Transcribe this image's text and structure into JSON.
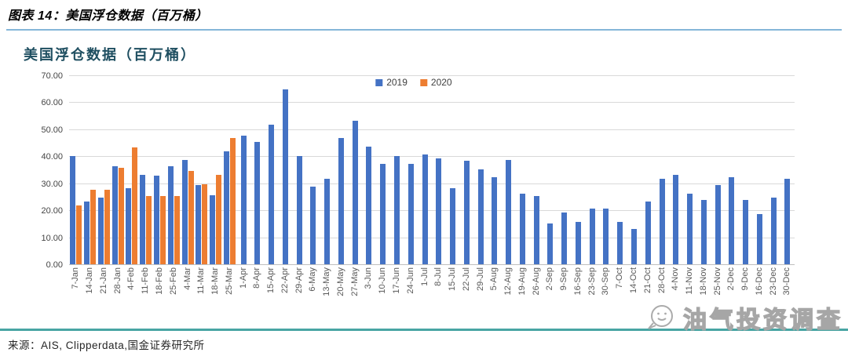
{
  "page": {
    "doc_title": "图表 14：美国浮仓数据（百万桶）",
    "source": "来源：AIS, Clipperdata,国金证券研究所",
    "watermark": "油气投资调查",
    "watermark_icon": "chat-bubble-smiley-icon"
  },
  "colors": {
    "series_2019": "#4472c4",
    "series_2020": "#ed7d31",
    "title_rule": "#85b6d8",
    "bottom_rule": "#48a5a3",
    "chart_title": "#1e4e60",
    "gridline": "#d9d9d9"
  },
  "chart_data": {
    "type": "bar",
    "title": "美国浮仓数据（百万桶）",
    "xlabel": "",
    "ylabel": "",
    "ylim": [
      0,
      70
    ],
    "ytick_step": 10,
    "ytick_labels": [
      "0.00",
      "10.00",
      "20.00",
      "30.00",
      "40.00",
      "50.00",
      "60.00",
      "70.00"
    ],
    "grid": true,
    "legend_position": "top-center",
    "categories": [
      "7-Jan",
      "14-Jan",
      "21-Jan",
      "28-Jan",
      "4-Feb",
      "11-Feb",
      "18-Feb",
      "25-Feb",
      "4-Mar",
      "11-Mar",
      "18-Mar",
      "25-Mar",
      "1-Apr",
      "8-Apr",
      "15-Apr",
      "22-Apr",
      "29-Apr",
      "6-May",
      "13-May",
      "20-May",
      "27-May",
      "3-Jun",
      "10-Jun",
      "17-Jun",
      "24-Jun",
      "1-Jul",
      "8-Jul",
      "15-Jul",
      "22-Jul",
      "29-Jul",
      "5-Aug",
      "12-Aug",
      "19-Aug",
      "26-Aug",
      "2-Sep",
      "9-Sep",
      "16-Sep",
      "23-Sep",
      "30-Sep",
      "7-Oct",
      "14-Oct",
      "21-Oct",
      "28-Oct",
      "4-Nov",
      "11-Nov",
      "18-Nov",
      "25-Nov",
      "2-Dec",
      "9-Dec",
      "16-Dec",
      "23-Dec",
      "30-Dec"
    ],
    "series": [
      {
        "name": "2019",
        "color": "#4472c4",
        "values": [
          40.5,
          23.5,
          25,
          36.5,
          28.5,
          33.5,
          33,
          36.5,
          39,
          29.5,
          26,
          42,
          48,
          45.5,
          52,
          65,
          40.5,
          29,
          32,
          47,
          53.5,
          44,
          37.5,
          40.5,
          37.5,
          41,
          39.5,
          28.5,
          38.5,
          35.5,
          32.5,
          39,
          26.5,
          25.5,
          15.5,
          19.5,
          16,
          21,
          21,
          16,
          13.5,
          23.5,
          32,
          33.5,
          26.5,
          24,
          29.5,
          32.5,
          24,
          19,
          25,
          32
        ]
      },
      {
        "name": "2020",
        "color": "#ed7d31",
        "values": [
          22,
          28,
          28,
          36,
          43.5,
          25.5,
          25.5,
          25.5,
          35,
          30,
          33.5,
          47
        ]
      }
    ]
  }
}
